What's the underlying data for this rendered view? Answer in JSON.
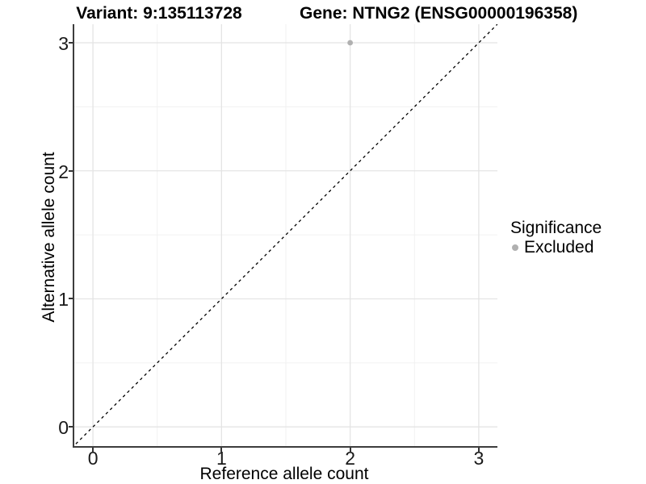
{
  "chart_data": {
    "type": "scatter",
    "title_left": "Variant: 9:135113728",
    "title_right": "Gene: NTNG2 (ENSG00000196358)",
    "xlabel": "Reference allele count",
    "ylabel": "Alternative allele count",
    "xlim": [
      -0.145,
      3.145
    ],
    "ylim": [
      -0.15,
      3.145
    ],
    "x_ticks": [
      0,
      1,
      2,
      3
    ],
    "y_ticks": [
      0,
      1,
      2,
      3
    ],
    "x_minor_ticks": [
      0.5,
      1.5,
      2.5
    ],
    "y_minor_ticks": [
      0.5,
      1.5,
      2.5
    ],
    "grid": "major+minor",
    "series": [
      {
        "name": "Excluded",
        "color": "#b0b0b0",
        "points": [
          {
            "x": 2,
            "y": 3
          }
        ]
      }
    ],
    "identity_line": {
      "style": "dashed",
      "color": "#000000",
      "from": [
        -0.2,
        -0.2
      ],
      "to": [
        3.2,
        3.2
      ]
    },
    "legend": {
      "title": "Significance",
      "position": "right",
      "entries": [
        {
          "label": "Excluded",
          "color": "#b0b0b0"
        }
      ]
    },
    "colors": {
      "grid_major": "#e4e4e4",
      "grid_minor": "#f1f1f1",
      "axis_line": "#3d3d3d",
      "tick_mark": "#333333",
      "tick_label": "#1a1a1a",
      "point": "#b0b0b0"
    }
  }
}
